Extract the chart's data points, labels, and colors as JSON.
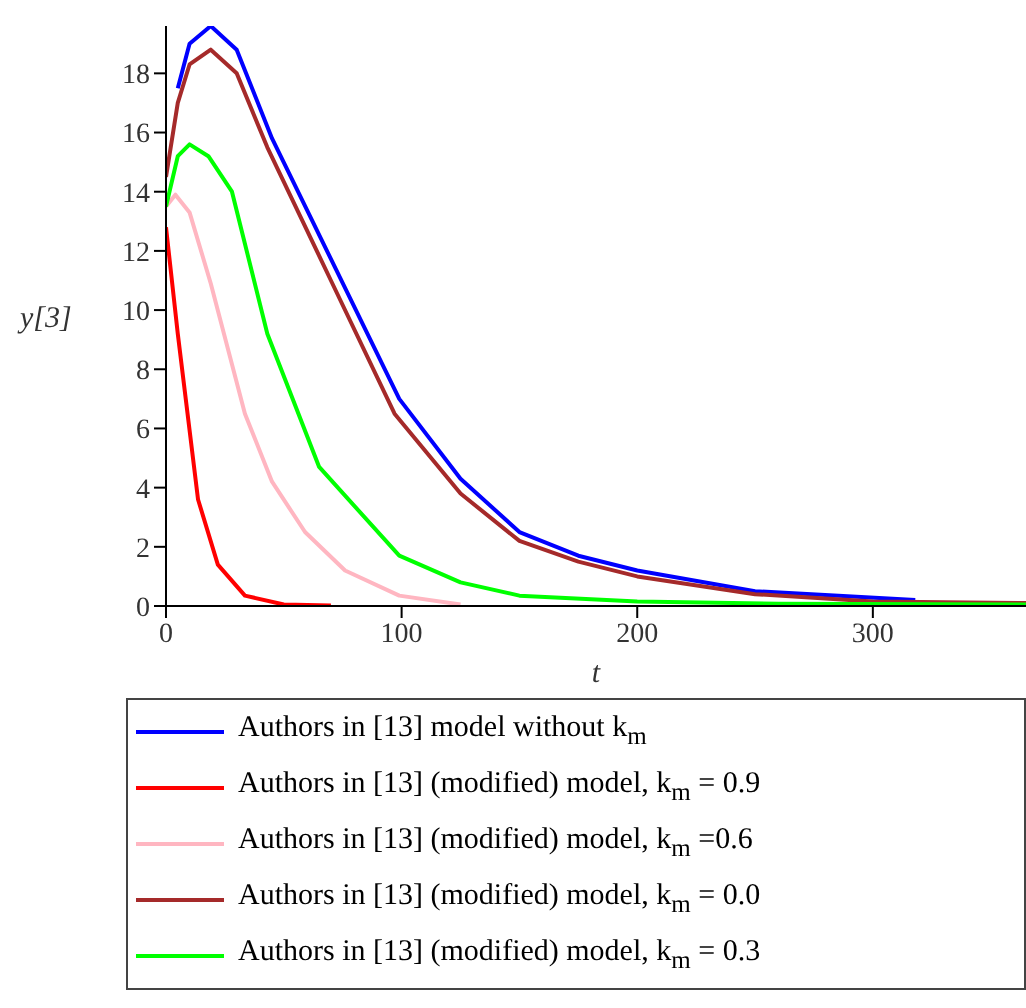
{
  "chart_data": {
    "type": "line",
    "xlabel": "t",
    "ylabel": "y[3]",
    "xlim": [
      0,
      365
    ],
    "ylim": [
      0,
      19.6
    ],
    "xticks": [
      0,
      100,
      200,
      300
    ],
    "yticks": [
      0,
      2,
      4,
      6,
      8,
      10,
      12,
      14,
      16,
      18
    ],
    "grid": false,
    "legend": "bottom",
    "marker": "none",
    "line_style": "solid",
    "series": [
      {
        "name": "Authors in [13] model without k$_{m}$",
        "color": "#0000ff",
        "x": [
          5,
          10,
          19,
          30,
          45,
          72,
          99,
          125,
          150,
          175,
          200,
          250,
          318
        ],
        "values": [
          17.5,
          19,
          19.6,
          18.8,
          15.8,
          11.4,
          7,
          4.3,
          2.5,
          1.7,
          1.2,
          0.5,
          0.2
        ]
      },
      {
        "name": "Authors in [13] (modified) model, k$_{m}$ = 0.9",
        "color": "#ff0000",
        "x": [
          0,
          5,
          13.6,
          22,
          33.5,
          50,
          70
        ],
        "values": [
          12.8,
          9.2,
          3.6,
          1.4,
          0.35,
          0.05,
          0.02
        ]
      },
      {
        "name": "Authors in [13] (modified) model, k$_{m}$ =0.6",
        "color": "#ffb6c1",
        "x": [
          0,
          4,
          10,
          19,
          33.5,
          45,
          59,
          76,
          99,
          125
        ],
        "values": [
          13.5,
          13.9,
          13.3,
          10.9,
          6.5,
          4.2,
          2.5,
          1.2,
          0.35,
          0.05
        ]
      },
      {
        "name": "Authors in [13] (modified) model, k$_{m}$ = 0.0",
        "color": "#a52a2a",
        "x": [
          0,
          5,
          10,
          19,
          30,
          43,
          70,
          97,
          125,
          150,
          175,
          200,
          250,
          300,
          365
        ],
        "values": [
          14.5,
          17,
          18.3,
          18.8,
          18,
          15.5,
          11,
          6.5,
          3.8,
          2.2,
          1.5,
          1,
          0.4,
          0.15,
          0.1
        ]
      },
      {
        "name": "Authors in [13] (modified) model, k$_{m}$ = 0.3",
        "color": "#00ff00",
        "x": [
          0,
          5,
          10,
          18,
          28,
          43,
          65,
          99,
          125,
          150,
          200,
          260,
          365
        ],
        "values": [
          13.5,
          15.2,
          15.6,
          15.2,
          14,
          9.2,
          4.7,
          1.7,
          0.8,
          0.35,
          0.15,
          0.08,
          0.05
        ]
      }
    ]
  }
}
